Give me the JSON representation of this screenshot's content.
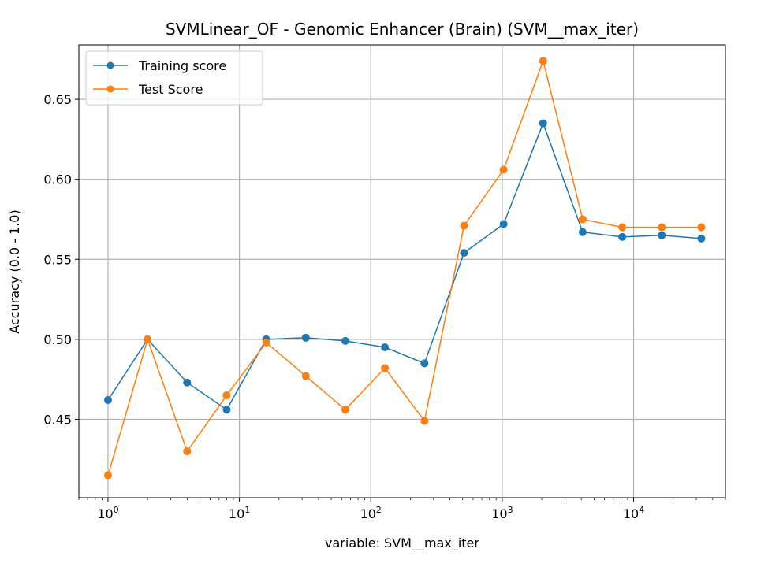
{
  "chart_data": {
    "type": "line",
    "title": "SVMLinear_OF - Genomic Enhancer (Brain) (SVM__max_iter)",
    "xlabel": "variable: SVM__max_iter",
    "ylabel": "Accuracy (0.0 - 1.0)",
    "xscale": "log",
    "xlim": [
      0.6,
      50000
    ],
    "ylim": [
      0.401,
      0.684
    ],
    "grid": true,
    "legend_position": "upper-left",
    "x": [
      1,
      2,
      4,
      8,
      16,
      32,
      64,
      128,
      256,
      512,
      1024,
      2048,
      4096,
      8192,
      16384,
      32768
    ],
    "x_tick_labels": [
      {
        "value": 1,
        "base": "10",
        "exp": "0"
      },
      {
        "value": 10,
        "base": "10",
        "exp": "1"
      },
      {
        "value": 100,
        "base": "10",
        "exp": "2"
      },
      {
        "value": 1000,
        "base": "10",
        "exp": "3"
      },
      {
        "value": 10000,
        "base": "10",
        "exp": "4"
      }
    ],
    "y_ticks": [
      0.45,
      0.5,
      0.55,
      0.6,
      0.65
    ],
    "y_tick_labels": [
      "0.45",
      "0.50",
      "0.55",
      "0.60",
      "0.65"
    ],
    "series": [
      {
        "name": "Training score",
        "color": "#1f77b4",
        "values": [
          0.462,
          0.5,
          0.473,
          0.456,
          0.5,
          0.501,
          0.499,
          0.495,
          0.485,
          0.554,
          0.572,
          0.635,
          0.567,
          0.564,
          0.565,
          0.563
        ]
      },
      {
        "name": "Test Score",
        "color": "#ff7f0e",
        "values": [
          0.415,
          0.5,
          0.43,
          0.465,
          0.498,
          0.477,
          0.456,
          0.482,
          0.449,
          0.571,
          0.606,
          0.674,
          0.575,
          0.57,
          0.57,
          0.57
        ]
      }
    ]
  }
}
